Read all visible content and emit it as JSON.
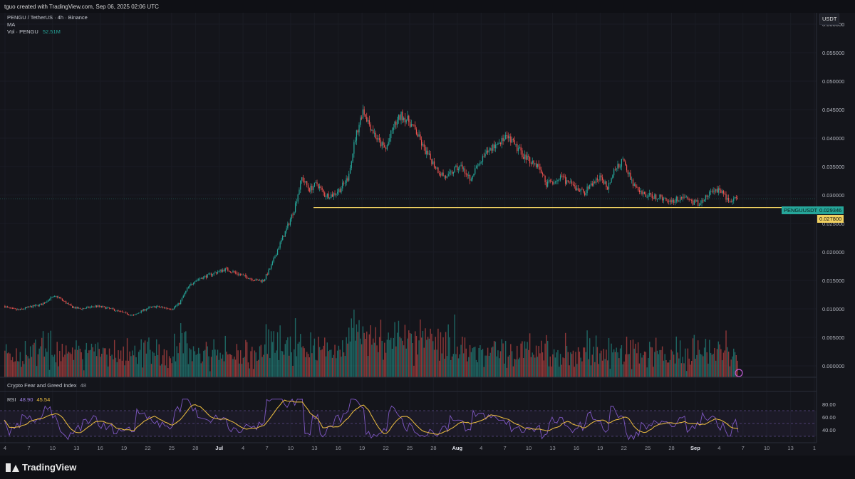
{
  "header": {
    "caption": "tguo created with TradingView.com, Sep 06, 2025 02:06 UTC"
  },
  "legend": {
    "symbol": "PENGU / TetherUS · 4h · Binance",
    "ma": "MA",
    "vol_label": "Vol · PENGU",
    "vol_value": "52.51M"
  },
  "currency": "USDT",
  "price_axis": {
    "labels": [
      "0.060000",
      "0.055000",
      "0.050000",
      "0.045000",
      "0.040000",
      "0.035000",
      "0.030000",
      "0.025000",
      "0.020000",
      "0.015000",
      "0.010000",
      "0.005000",
      "0.000000"
    ]
  },
  "tags": {
    "current_symbol": "PENGUUSDT",
    "current_price": "0.029346",
    "support_price": "0.027800"
  },
  "fng": {
    "label": "Crypto Fear and Greed Index",
    "value": "48"
  },
  "rsi": {
    "label": "RSI",
    "value1": "48.90",
    "value2": "45.54",
    "levels": [
      "80.00",
      "60.00",
      "40.00"
    ]
  },
  "time_axis": {
    "labels": [
      "4",
      "7",
      "10",
      "13",
      "16",
      "19",
      "22",
      "25",
      "28",
      "Jul",
      "4",
      "7",
      "10",
      "13",
      "16",
      "19",
      "22",
      "25",
      "28",
      "Aug",
      "4",
      "7",
      "10",
      "13",
      "16",
      "19",
      "22",
      "25",
      "28",
      "Sep",
      "4",
      "7",
      "10",
      "13",
      "1"
    ]
  },
  "footer": {
    "brand": "TradingView"
  },
  "colors": {
    "background": "#0f1015",
    "up": "#26a69a",
    "down": "#ef5350",
    "support": "#f0d060",
    "rsi_line": "#7e57c2",
    "rsi_ma": "#f0c040",
    "grid": "#1a1c24"
  },
  "chart_data": {
    "type": "candlestick",
    "title": "PENGU / TetherUS · 4h · Binance",
    "ylabel": "USDT",
    "ylim": [
      -0.002,
      0.062
    ],
    "support_level": 0.0278,
    "last_price": 0.029346,
    "x_ticks": [
      "4",
      "7",
      "10",
      "13",
      "16",
      "19",
      "22",
      "25",
      "28",
      "Jul",
      "4",
      "7",
      "10",
      "13",
      "16",
      "19",
      "22",
      "25",
      "28",
      "Aug",
      "4",
      "7",
      "10",
      "13",
      "16",
      "19",
      "22",
      "25",
      "28",
      "Sep",
      "4",
      "7",
      "10",
      "13",
      "1"
    ],
    "price_path_daily": [
      0.0105,
      0.01,
      0.0098,
      0.0102,
      0.0105,
      0.0108,
      0.0118,
      0.0122,
      0.0112,
      0.0103,
      0.01,
      0.0102,
      0.0105,
      0.0103,
      0.01,
      0.0096,
      0.0092,
      0.0088,
      0.0096,
      0.0102,
      0.0104,
      0.0102,
      0.01,
      0.011,
      0.0135,
      0.015,
      0.0155,
      0.016,
      0.0165,
      0.017,
      0.0165,
      0.016,
      0.0155,
      0.015,
      0.015,
      0.0175,
      0.021,
      0.024,
      0.0275,
      0.033,
      0.031,
      0.032,
      0.03,
      0.03,
      0.031,
      0.033,
      0.04,
      0.045,
      0.042,
      0.0395,
      0.038,
      0.042,
      0.044,
      0.043,
      0.041,
      0.038,
      0.036,
      0.034,
      0.033,
      0.0345,
      0.035,
      0.033,
      0.035,
      0.037,
      0.0385,
      0.0395,
      0.04,
      0.0385,
      0.037,
      0.036,
      0.035,
      0.032,
      0.0325,
      0.033,
      0.032,
      0.031,
      0.0305,
      0.032,
      0.033,
      0.0315,
      0.0345,
      0.036,
      0.033,
      0.0305,
      0.03,
      0.0298,
      0.0295,
      0.029,
      0.0292,
      0.0298,
      0.0288,
      0.0285,
      0.0298,
      0.031,
      0.0305,
      0.0288,
      0.0293
    ],
    "rsi_range": [
      20,
      100
    ],
    "rsi_levels": [
      80,
      60,
      40
    ]
  }
}
